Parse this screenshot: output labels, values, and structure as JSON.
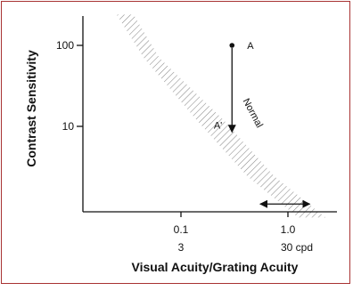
{
  "chart_data": {
    "type": "area",
    "title": "",
    "xlabel": "Visual Acuity/Grating Acuity",
    "ylabel": "Contrast Sensitivity",
    "x_scale": "log",
    "y_scale": "log",
    "x_ticks": [
      {
        "value": 0.1,
        "label": "0.1",
        "sublabel": "3"
      },
      {
        "value": 1.0,
        "label": "1.0",
        "sublabel": "30 cpd"
      }
    ],
    "y_ticks": [
      {
        "value": 100,
        "label": "100"
      },
      {
        "value": 10,
        "label": "10"
      }
    ],
    "band": {
      "name": "Normal",
      "upper_edge": [
        [
          0.036,
          240
        ],
        [
          0.063,
          70
        ],
        [
          0.25,
          12
        ],
        [
          0.75,
          2.4
        ],
        [
          2.25,
          0.75
        ]
      ],
      "lower_edge": [
        [
          0.025,
          240
        ],
        [
          0.045,
          70
        ],
        [
          0.14,
          12
        ],
        [
          0.42,
          2.4
        ],
        [
          1.25,
          0.75
        ]
      ]
    },
    "points": [
      {
        "label": "A",
        "x": 0.3,
        "y": 100
      },
      {
        "label": "A'",
        "x": 0.3,
        "y": 8.5
      }
    ],
    "arrows": [
      {
        "from": [
          0.3,
          100
        ],
        "to": [
          0.3,
          8.5
        ],
        "kind": "single"
      },
      {
        "from": [
          0.55,
          1.1
        ],
        "to": [
          1.6,
          1.1
        ],
        "kind": "double"
      }
    ],
    "colors": {
      "frame": "#a83232",
      "ink": "#111111",
      "hatch": "#8a8a8a"
    }
  }
}
